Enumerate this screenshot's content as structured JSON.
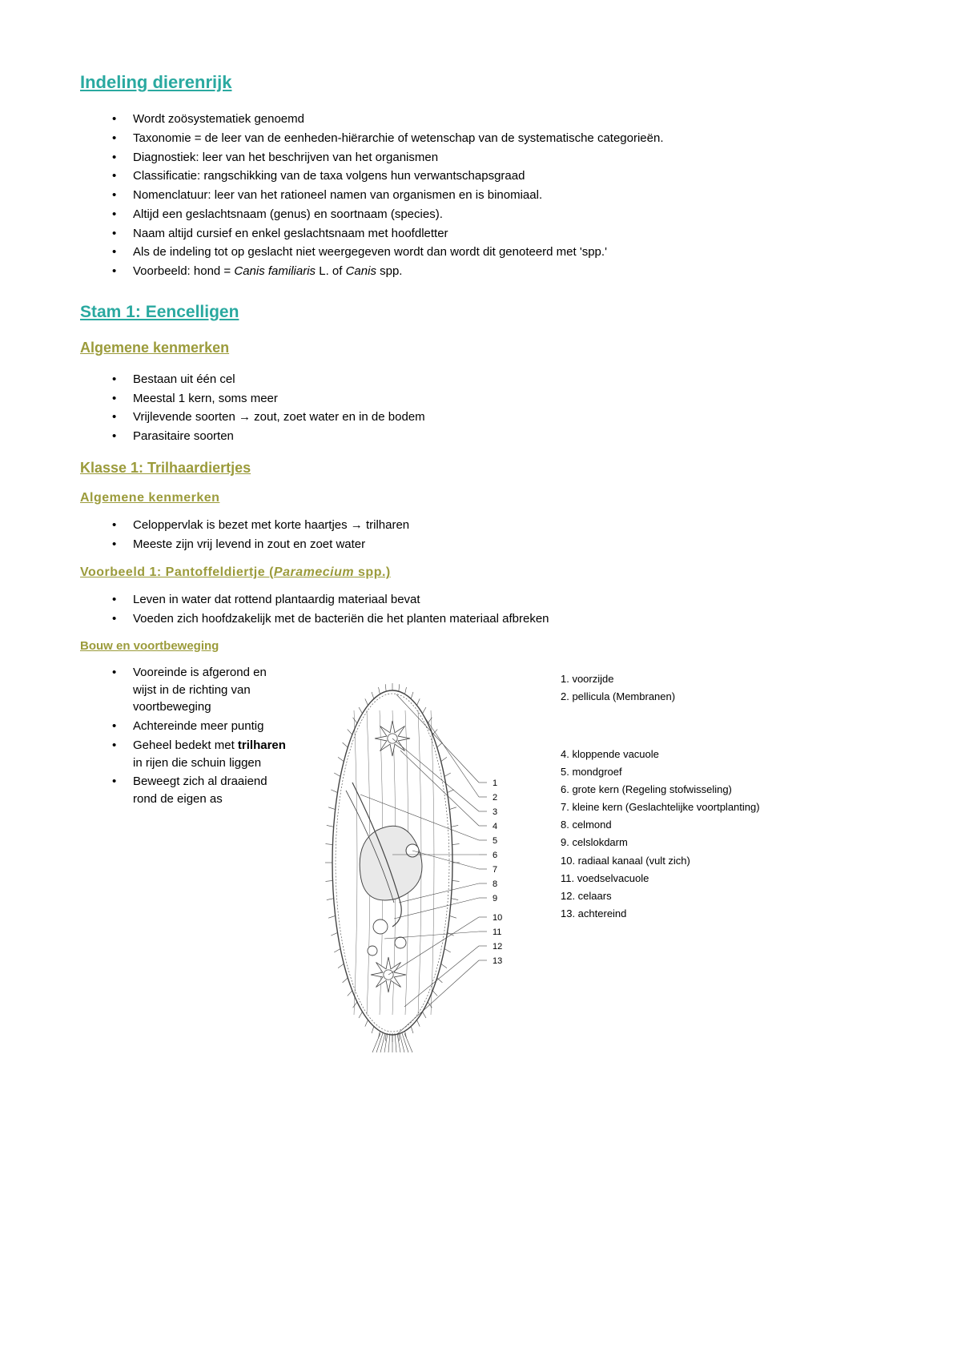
{
  "colors": {
    "teal": "#2aa9a0",
    "olive": "#9b9b3b",
    "text": "#000000",
    "diagram_stroke": "#444444"
  },
  "heading1": "Indeling dierenrijk",
  "bullets1": [
    "Wordt zoösystematiek genoemd",
    "Taxonomie = de leer van de eenheden-hiërarchie of wetenschap van de systematische categorieën.",
    "Diagnostiek: leer van het beschrijven van het organismen",
    "Classificatie: rangschikking van de taxa volgens hun verwantschapsgraad",
    "Nomenclatuur: leer van het rationeel namen van organismen en is binomiaal.",
    "Altijd een geslachtsnaam (genus) en soortnaam (species).",
    "Naam altijd cursief en enkel geslachtsnaam met hoofdletter",
    "Als de indeling tot op geslacht niet weergegeven wordt dan wordt dit genoteerd met 'spp.'"
  ],
  "bullets1_last": {
    "pre": "Voorbeeld: hond = ",
    "it1": "Canis familiaris",
    "mid": " L. of ",
    "it2": "Canis",
    "post": " spp."
  },
  "heading2": "Stam 1: Eencelligen",
  "heading3a": "Algemene kenmerken",
  "bullets2": [
    "Bestaan uit één cel",
    "Meestal 1 kern, soms meer",
    "Vrijlevende soorten → zout, zoet water en in de bodem",
    "Parasitaire soorten"
  ],
  "heading3b": "Klasse 1: Trilhaardiertjes",
  "heading4a": "Algemene kenmerken",
  "bullets3": [
    "Celoppervlak is bezet met korte haartjes → trilharen",
    "Meeste zijn vrij levend in zout en zoet water"
  ],
  "heading4b_pre": "Voorbeeld 1: Pantoffeldiertje (",
  "heading4b_it": "Paramecium",
  "heading4b_post": " spp.)",
  "bullets4": [
    "Leven in water dat rottend plantaardig materiaal bevat",
    "Voeden zich hoofdzakelijk met de bacteriën die het planten materiaal afbreken"
  ],
  "heading5": "Bouw en voortbeweging",
  "bullets5": [
    {
      "pre": "Vooreinde is afgerond en wijst in de richting van voortbeweging"
    },
    {
      "pre": "Achtereinde meer puntig"
    },
    {
      "pre": "Geheel bedekt met ",
      "bold": "trilharen",
      "post": " in rijen die schuin liggen"
    },
    {
      "pre": "Beweegt zich al draaiend rond de eigen as"
    }
  ],
  "diagram": {
    "labels_group1": [
      "1. voorzijde",
      "2. pellicula (Membranen)"
    ],
    "labels_group2": [
      "4. kloppende vacuole",
      "5. mondgroef",
      "6. grote kern (Regeling stofwisseling)",
      "7. kleine kern (Geslachtelijke voortplanting)",
      "8. celmond",
      "9. celslokdarm",
      "10. radiaal kanaal (vult zich)",
      "11. voedselvacuole",
      "12. celaars",
      "13. achtereind"
    ],
    "pointer_numbers": [
      "1",
      "2",
      "3",
      "4",
      "5",
      "6",
      "7",
      "8",
      "9",
      "10",
      "11",
      "12",
      "13"
    ]
  }
}
